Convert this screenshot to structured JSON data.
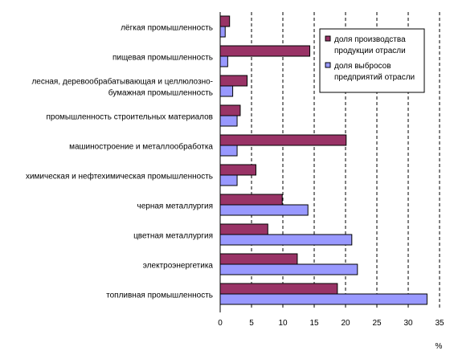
{
  "chart_data": {
    "type": "bar",
    "orientation": "horizontal",
    "categories": [
      [
        "лёгкая промышленность"
      ],
      [
        "пищевая промышленность"
      ],
      [
        "лесная, деревообрабатывающая и целлюлозно-",
        "бумажная промышленность"
      ],
      [
        "промышленность строительных материалов"
      ],
      [
        "машиностроение и металлообработка"
      ],
      [
        "химическая и нефтехимическая промышленность"
      ],
      [
        "черная металлургия"
      ],
      [
        "цветная металлургия"
      ],
      [
        "электроэнергетика"
      ],
      [
        "топливная промышленность"
      ]
    ],
    "series": [
      {
        "name": [
          "доля производства",
          "продукции отрасли"
        ],
        "color": "#993366",
        "values": [
          1.5,
          14.3,
          4.3,
          3.2,
          20.1,
          5.7,
          9.9,
          7.6,
          12.3,
          18.7
        ]
      },
      {
        "name": [
          "доля выбросов",
          "предприятий отрасли"
        ],
        "color": "#9999ff",
        "values": [
          0.8,
          1.2,
          2.0,
          2.7,
          2.7,
          2.7,
          14.0,
          21.0,
          21.9,
          33.0
        ]
      }
    ],
    "xlim": [
      0,
      35
    ],
    "xticks": [
      0,
      5,
      10,
      15,
      20,
      25,
      30,
      35
    ],
    "xunit": "%",
    "grid": "vertical dashed",
    "legend_position": "top-right"
  }
}
